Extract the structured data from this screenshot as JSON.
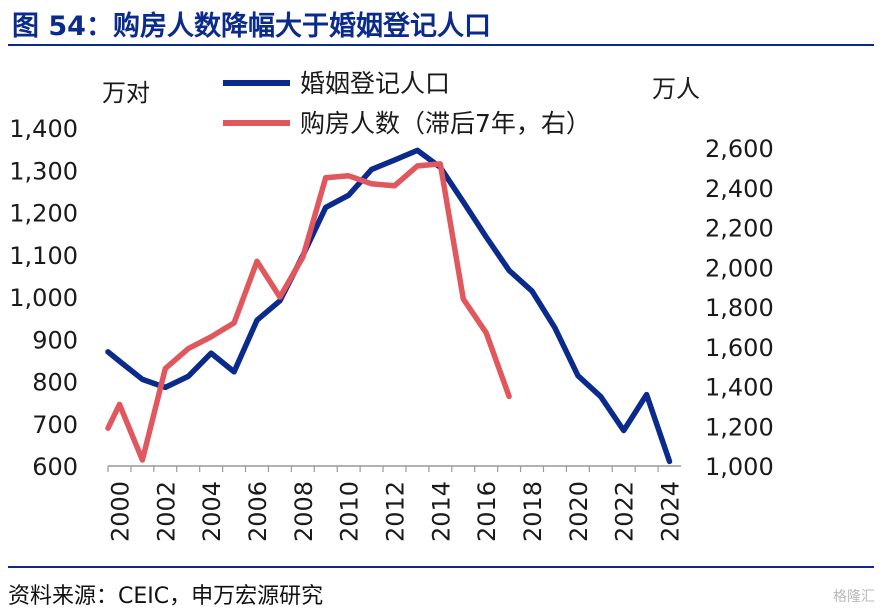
{
  "title": "图 54：购房人数降幅大于婚姻登记人口",
  "source": "资料来源：CEIC，申万宏源研究",
  "watermark": "格隆汇",
  "colors": {
    "title": "#0a2a8c",
    "marriage": "#0a2a8c",
    "buyers": "#e0575e",
    "axis": "#1a1a1a"
  },
  "chart_data": {
    "type": "line",
    "y_left_label": "万对",
    "y_right_label": "万人",
    "y_left_lim": [
      600,
      1400
    ],
    "y_right_lim": [
      1000,
      2600
    ],
    "y_left_ticks": [
      "600",
      "700",
      "800",
      "900",
      "1,000",
      "1,100",
      "1,200",
      "1,300",
      "1,400"
    ],
    "y_right_ticks": [
      "1,000",
      "1,200",
      "1,400",
      "1,600",
      "1,800",
      "2,000",
      "2,200",
      "2,400",
      "2,600"
    ],
    "x_lim": [
      1999.5,
      2024.5
    ],
    "x_ticks": [
      "2000",
      "2002",
      "2004",
      "2006",
      "2008",
      "2010",
      "2012",
      "2014",
      "2016",
      "2018",
      "2020",
      "2022",
      "2024"
    ],
    "legend_position": "top",
    "series": [
      {
        "name": "婚姻登记人口",
        "axis": "left",
        "x": [
          1999.5,
          2000,
          2001,
          2002,
          2003,
          2004,
          2005,
          2006,
          2007,
          2008,
          2009,
          2010,
          2011,
          2012,
          2013,
          2014,
          2015,
          2016,
          2017,
          2018,
          2019,
          2020,
          2021,
          2022,
          2023,
          2024
        ],
        "values": [
          870,
          848,
          805,
          786,
          812,
          867,
          823,
          945,
          991,
          1098,
          1212,
          1241,
          1302,
          1324,
          1347,
          1307,
          1225,
          1142,
          1063,
          1014,
          927,
          814,
          764,
          684,
          769,
          611
        ]
      },
      {
        "name": "购房人数（滞后7年，右）",
        "axis": "right",
        "x": [
          1999.5,
          2000,
          2001,
          2002,
          2003,
          2004,
          2005,
          2006,
          2007,
          2008,
          2009,
          2010,
          2011,
          2012,
          2013,
          2014,
          2015,
          2016,
          2017
        ],
        "values": [
          1190,
          1310,
          1030,
          1490,
          1590,
          1650,
          1720,
          2030,
          1850,
          2050,
          2450,
          2460,
          2420,
          2410,
          2510,
          2520,
          1840,
          1670,
          1350
        ]
      }
    ]
  }
}
